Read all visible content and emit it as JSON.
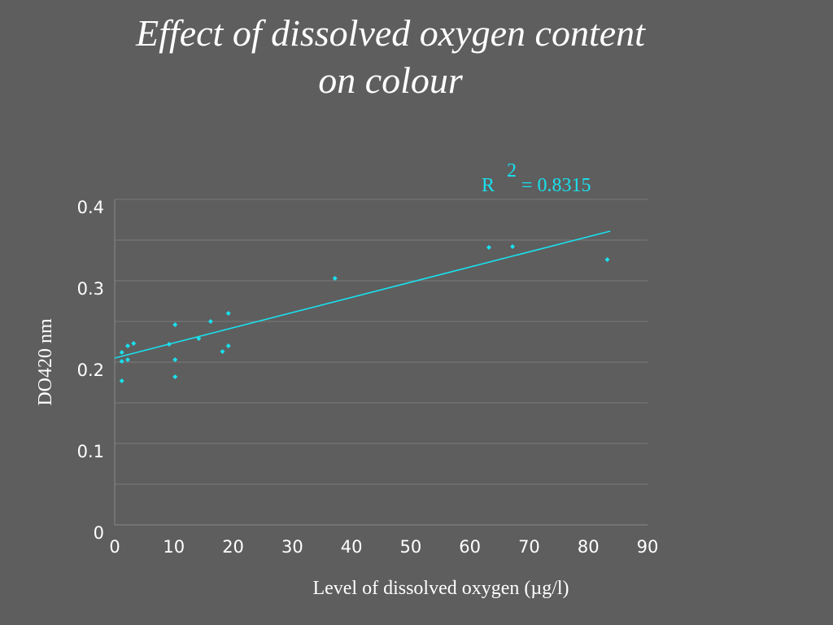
{
  "title": {
    "line1": "Effect of dissolved oxygen content",
    "line2": "on colour"
  },
  "chart_data": {
    "type": "scatter",
    "xlabel": "Level of dissolved oxygen (µg/l)",
    "ylabel": "DO420 nm",
    "xlim": [
      0,
      90
    ],
    "ylim": [
      0,
      0.4
    ],
    "x_ticks": [
      "0",
      "10",
      "20",
      "30",
      "40",
      "50",
      "60",
      "70",
      "80",
      "90"
    ],
    "y_ticks": [
      "0",
      "0.1",
      "0.2",
      "0.3",
      "0.4"
    ],
    "grid": "horizontal",
    "point_color": "#19e0ee",
    "trendline": {
      "type": "linear",
      "x_start": 0,
      "y_start": 0.205,
      "x_end": 83.7,
      "y_end": 0.361,
      "color": "#19e0ee",
      "r_squared_label": "R",
      "r_squared_exp": "2",
      "r_squared_value": "= 0.8315"
    },
    "points": [
      {
        "x": 1.2,
        "y": 0.212
      },
      {
        "x": 1.2,
        "y": 0.201
      },
      {
        "x": 1.2,
        "y": 0.177
      },
      {
        "x": 2.2,
        "y": 0.22
      },
      {
        "x": 2.2,
        "y": 0.203
      },
      {
        "x": 3.2,
        "y": 0.223
      },
      {
        "x": 9.2,
        "y": 0.222
      },
      {
        "x": 10.2,
        "y": 0.246
      },
      {
        "x": 10.2,
        "y": 0.203
      },
      {
        "x": 10.2,
        "y": 0.182
      },
      {
        "x": 14.2,
        "y": 0.229
      },
      {
        "x": 16.2,
        "y": 0.25
      },
      {
        "x": 18.2,
        "y": 0.213
      },
      {
        "x": 19.2,
        "y": 0.26
      },
      {
        "x": 19.2,
        "y": 0.22
      },
      {
        "x": 37.2,
        "y": 0.303
      },
      {
        "x": 63.2,
        "y": 0.341
      },
      {
        "x": 67.2,
        "y": 0.342
      },
      {
        "x": 83.2,
        "y": 0.326
      }
    ]
  }
}
